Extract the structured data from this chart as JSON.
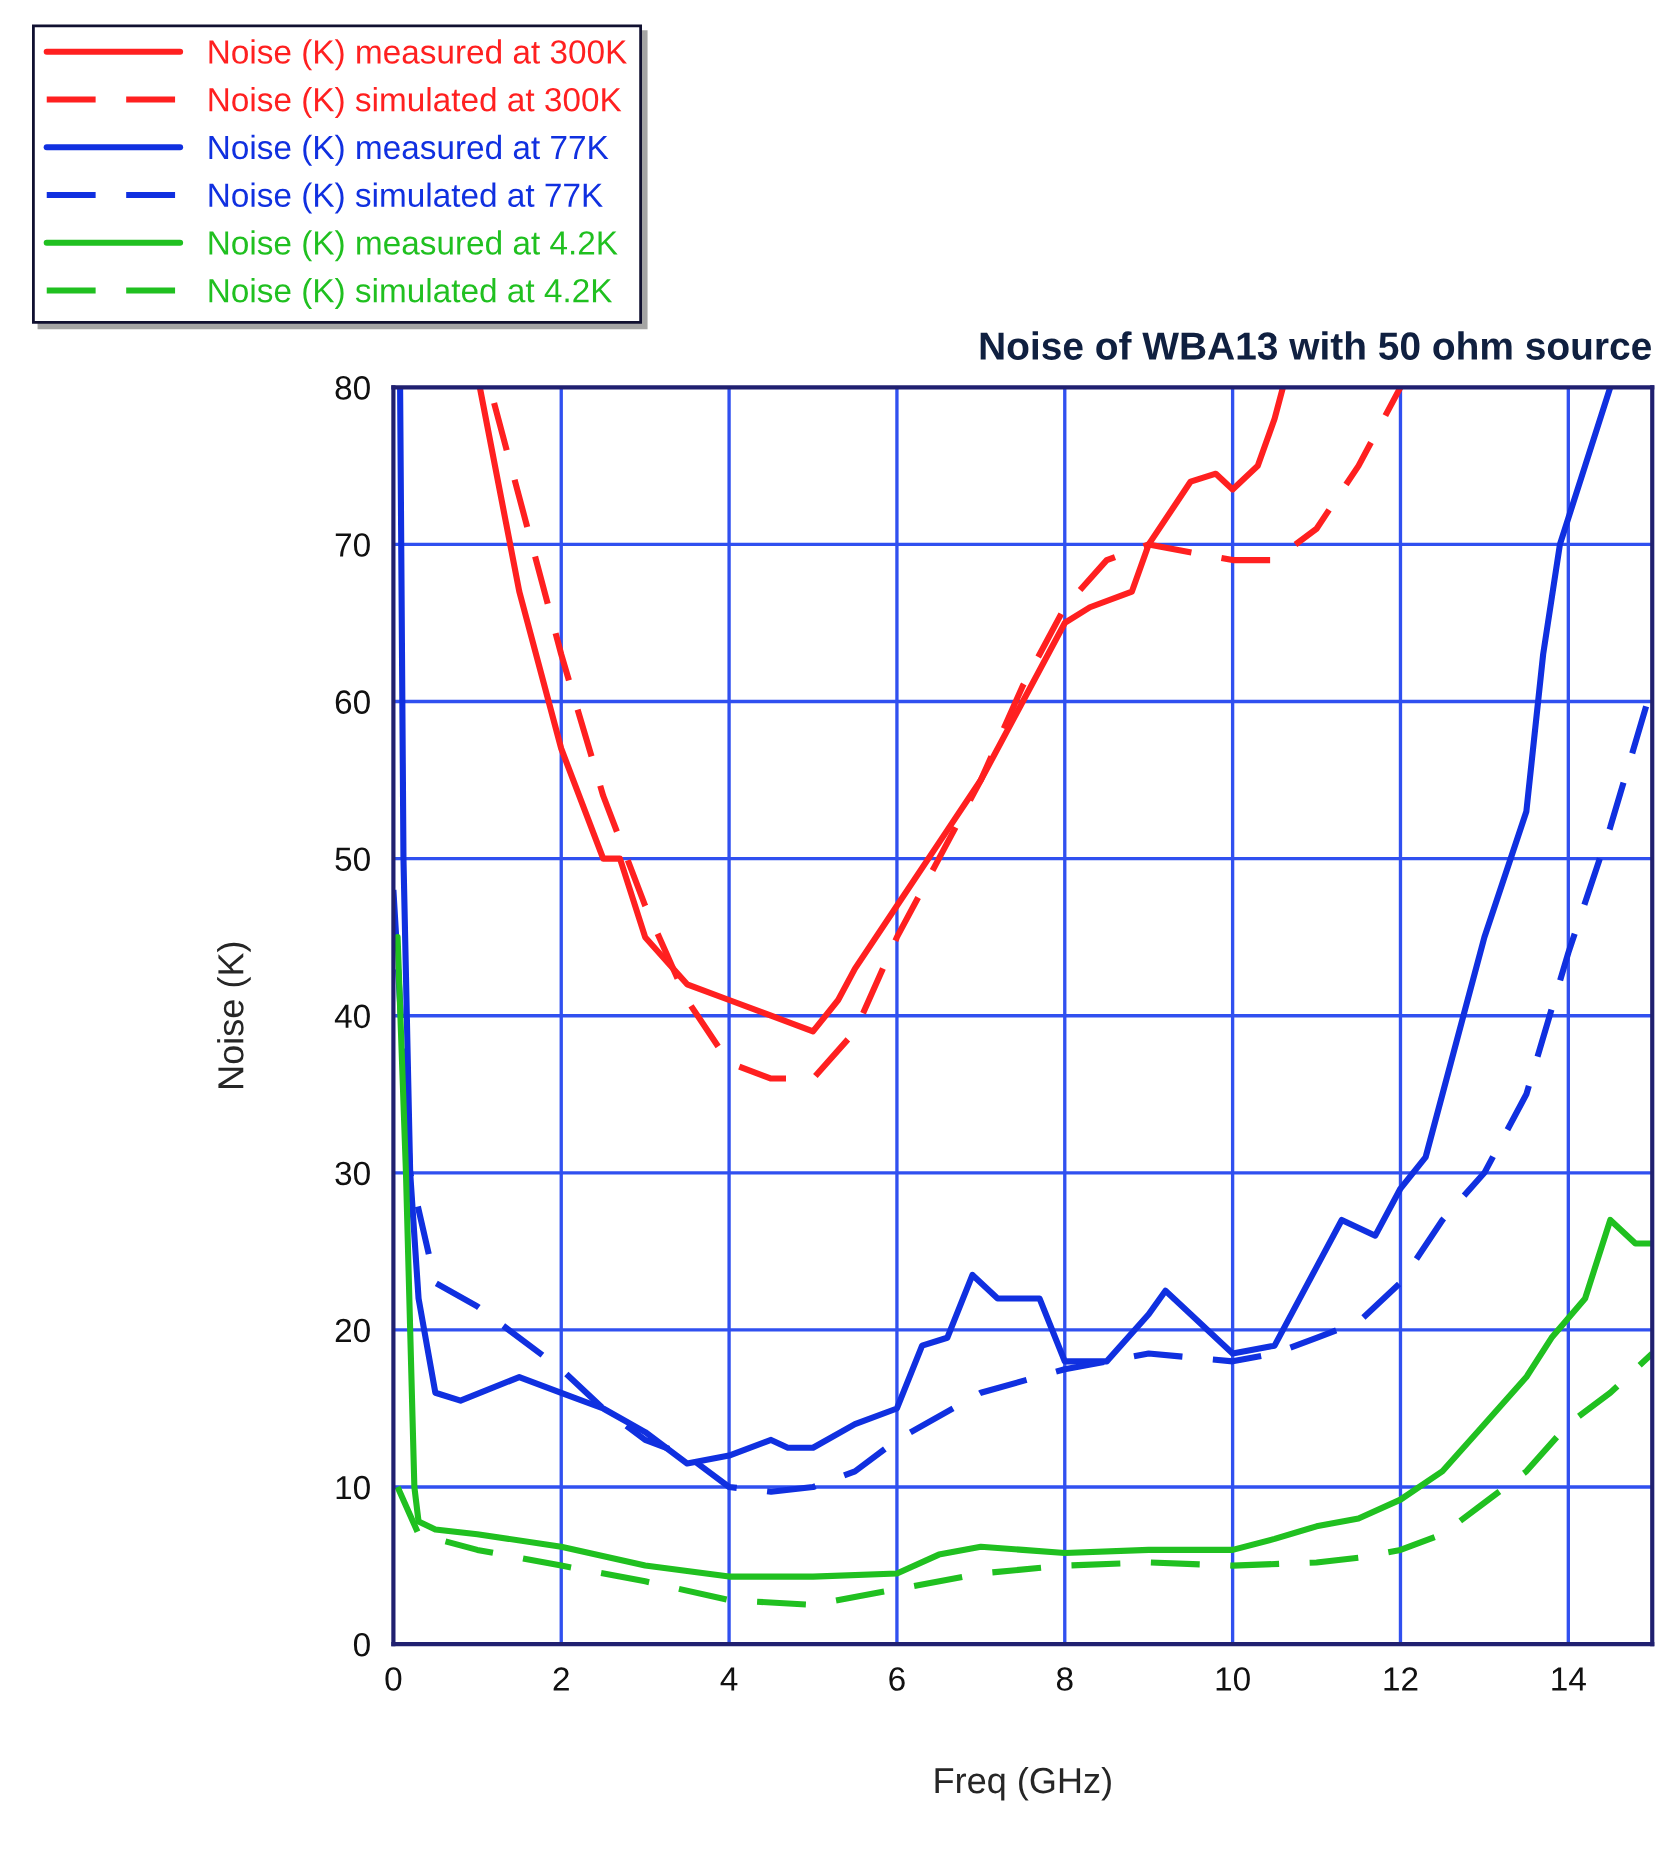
{
  "chart_data": {
    "type": "line",
    "title": "Noise of WBA13 with 50 ohm source",
    "xlabel": "Freq (GHz)",
    "ylabel": "Noise (K)",
    "xlim": [
      0,
      15
    ],
    "xticks": [
      0,
      2,
      4,
      6,
      8,
      10,
      12,
      14
    ],
    "ylim": [
      0,
      80
    ],
    "yticks": [
      0,
      10,
      20,
      30,
      40,
      50,
      60,
      70,
      80
    ],
    "grid": true,
    "legend": "top left",
    "series": [
      {
        "name": "Noise (K) measured at 300K",
        "color": "#ff2020",
        "line_style": "solid",
        "x": [
          1.03,
          1.5,
          2,
          2.5,
          2.7,
          3,
          3.5,
          4,
          4.5,
          5,
          5.3,
          5.5,
          6,
          6.5,
          7,
          7.5,
          8,
          8.3,
          8.8,
          9,
          9.5,
          9.8,
          10,
          10.3,
          10.5,
          10.6
        ],
        "values": [
          80,
          67,
          57,
          50,
          50,
          45,
          42,
          41,
          40,
          39,
          41,
          43,
          47,
          51,
          55,
          60,
          65,
          66,
          67,
          70,
          74,
          74.5,
          73.5,
          75,
          78,
          80
        ]
      },
      {
        "name": "Noise (K) simulated at 300K",
        "color": "#ff2020",
        "line_style": "dashed",
        "x": [
          1.2,
          1.5,
          2,
          2.5,
          3,
          3.5,
          4,
          4.5,
          5,
          5.5,
          6,
          6.5,
          7,
          7.5,
          8,
          8.5,
          9,
          10,
          10.5,
          11,
          11.5,
          12
        ],
        "values": [
          79,
          73,
          63,
          54,
          47,
          41,
          37,
          36,
          36,
          39,
          45,
          50,
          55,
          61,
          66,
          69,
          70,
          69,
          69,
          71,
          75,
          80
        ]
      },
      {
        "name": "Noise (K) measured at 77K",
        "color": "#1030e0",
        "line_style": "solid",
        "x": [
          0.08,
          0.12,
          0.2,
          0.3,
          0.5,
          0.8,
          1.5,
          2,
          2.5,
          3,
          3.5,
          4,
          4.5,
          4.7,
          5,
          5.5,
          6,
          6.3,
          6.6,
          6.9,
          7.2,
          7.7,
          8,
          8.5,
          9,
          9.2,
          9.5,
          10,
          10.5,
          11,
          11.3,
          11.7,
          12,
          12.3,
          12.6,
          13,
          13.5,
          13.7,
          13.9,
          14.2,
          14.5
        ],
        "values": [
          80,
          50,
          30,
          22,
          16,
          15.5,
          17,
          16,
          15,
          13.5,
          11.5,
          12,
          13,
          12.5,
          12.5,
          14,
          15,
          19,
          19.5,
          23.5,
          22,
          22,
          18,
          18,
          21,
          22.5,
          21,
          18.5,
          19,
          24,
          27,
          26,
          29,
          31,
          37,
          45,
          53,
          63,
          70,
          75,
          80
        ]
      },
      {
        "name": "Noise (K) simulated at 77K",
        "color": "#1030e0",
        "line_style": "dashed",
        "x": [
          0.0,
          0.2,
          0.5,
          1,
          2,
          2.5,
          3,
          3.5,
          4,
          4.5,
          5,
          5.5,
          6,
          7,
          8,
          9,
          10,
          10.5,
          11,
          11.5,
          12,
          12.5,
          13,
          13.5,
          14,
          14.5,
          15
        ],
        "values": [
          48,
          30,
          23,
          21.5,
          17.5,
          15,
          13,
          12,
          10,
          9.7,
          10,
          11,
          13,
          16,
          17.5,
          18.5,
          18,
          18.5,
          19.5,
          20.5,
          23,
          27,
          30,
          35,
          44,
          52,
          61
        ]
      },
      {
        "name": "Noise (K) measured at 4.2K",
        "color": "#20c020",
        "line_style": "solid",
        "x": [
          0.05,
          0.15,
          0.25,
          0.3,
          0.5,
          1,
          2,
          3,
          4,
          5,
          6,
          6.5,
          7,
          7.5,
          8,
          9,
          10,
          10.5,
          11,
          11.5,
          12,
          12.5,
          13,
          13.5,
          13.8,
          14.2,
          14.5,
          14.8,
          15
        ],
        "values": [
          45,
          30,
          10,
          7.8,
          7.3,
          7,
          6.2,
          5,
          4.3,
          4.3,
          4.5,
          5.7,
          6.2,
          6,
          5.8,
          6,
          6,
          6.7,
          7.5,
          8,
          9.2,
          11,
          14,
          17,
          19.5,
          22,
          27,
          25.5,
          25.5
        ]
      },
      {
        "name": "Noise (K) simulated at 4.2K",
        "color": "#20c020",
        "line_style": "dashed",
        "x": [
          0.05,
          0.3,
          1,
          2,
          3,
          4,
          5,
          6,
          7,
          8,
          9,
          10,
          11,
          11.5,
          12,
          12.5,
          13,
          13.5,
          14,
          14.5,
          15
        ],
        "values": [
          10,
          7,
          6,
          5,
          4,
          2.8,
          2.5,
          3.5,
          4.5,
          5,
          5.2,
          5,
          5.2,
          5.5,
          6,
          7,
          9,
          11,
          14,
          16,
          18.5
        ]
      }
    ]
  }
}
